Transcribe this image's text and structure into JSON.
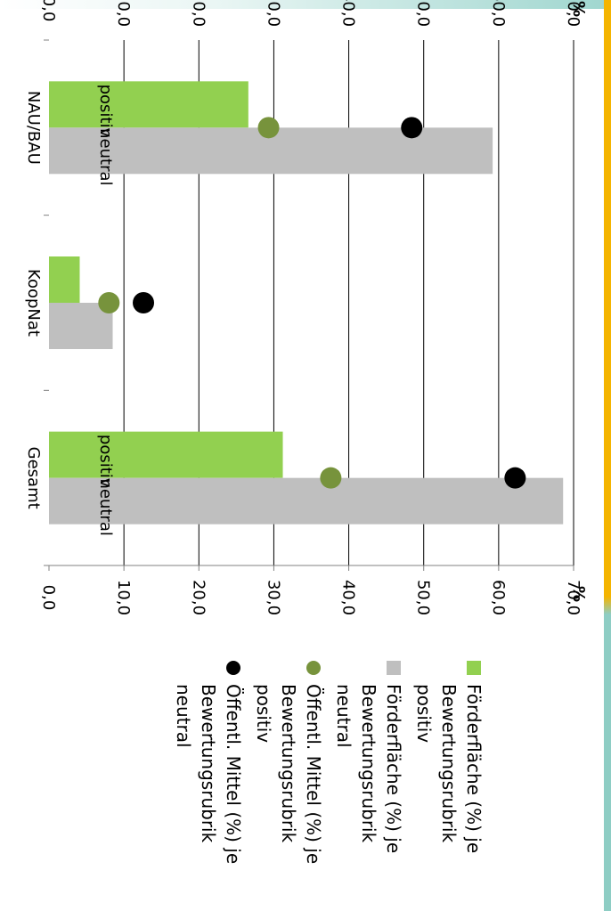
{
  "chart_data": {
    "type": "bar",
    "orientation": "rotated-90",
    "categories": [
      "NAU/BAU",
      "KoopNat",
      "Gesamt"
    ],
    "ylabel": "%",
    "ylim": [
      0,
      70
    ],
    "yticks": [
      "0,0",
      "10,0",
      "20,0",
      "30,0",
      "40,0",
      "50,0",
      "60,0",
      "70,0"
    ],
    "grid": true,
    "legend_position": "right",
    "series": [
      {
        "name": "Förderfläche (%) je Bewertungsrubrik positiv",
        "kind": "bar",
        "color": "#92d050",
        "values": [
          26.6,
          4.1,
          31.2
        ],
        "bar_labels": [
          "positiv",
          "",
          "positiv"
        ]
      },
      {
        "name": "Förderfläche (%) je Bewertungsrubrik neutral",
        "kind": "bar",
        "color": "#bfbfbf",
        "values": [
          59.2,
          8.5,
          68.6
        ],
        "bar_labels": [
          "neutral",
          "",
          "neutral"
        ]
      },
      {
        "name": "Öffentl. Mittel (%) je Bewertungsrubrik positiv",
        "kind": "marker",
        "color": "#77933c",
        "values": [
          29.3,
          8.0,
          37.6
        ]
      },
      {
        "name": "Öffentl. Mittel (%) je Bewertungsrubrik neutral",
        "kind": "marker",
        "color": "#000000",
        "values": [
          48.4,
          12.6,
          62.2
        ]
      }
    ]
  }
}
